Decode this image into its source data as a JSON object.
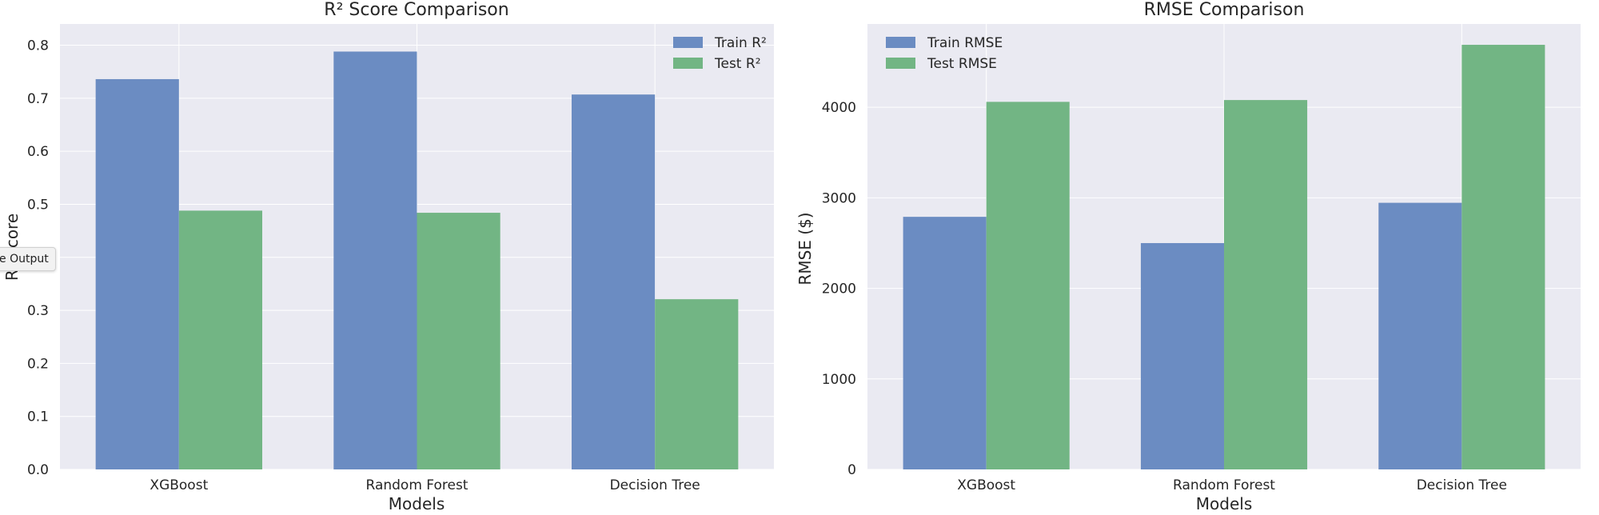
{
  "chart_data": [
    {
      "type": "bar",
      "title": "R² Score Comparison",
      "xlabel": "Models",
      "ylabel": "R² Score",
      "categories": [
        "XGBoost",
        "Random Forest",
        "Decision Tree"
      ],
      "series": [
        {
          "name": "Train R²",
          "values": [
            0.736,
            0.788,
            0.707
          ],
          "color": "#6b8cc2"
        },
        {
          "name": "Test R²",
          "values": [
            0.488,
            0.484,
            0.321
          ],
          "color": "#72b584"
        }
      ],
      "ylim": [
        0,
        0.84
      ],
      "yticks": [
        "0.0",
        "0.1",
        "0.2",
        "0.3",
        "0.4",
        "0.5",
        "0.6",
        "0.7",
        "0.8"
      ],
      "grid": true,
      "legend_position": "top-right"
    },
    {
      "type": "bar",
      "title": "RMSE Comparison",
      "xlabel": "Models",
      "ylabel": "RMSE ($)",
      "categories": [
        "XGBoost",
        "Random Forest",
        "Decision Tree"
      ],
      "series": [
        {
          "name": "Train RMSE",
          "values": [
            2790,
            2500,
            2945
          ],
          "color": "#6b8cc2"
        },
        {
          "name": "Test RMSE",
          "values": [
            4060,
            4080,
            4690
          ],
          "color": "#72b584"
        }
      ],
      "ylim": [
        0,
        4920
      ],
      "yticks": [
        "0",
        "1000",
        "2000",
        "3000",
        "4000"
      ],
      "grid": true,
      "legend_position": "top-left"
    }
  ],
  "tooltip": {
    "text": "e Output"
  }
}
